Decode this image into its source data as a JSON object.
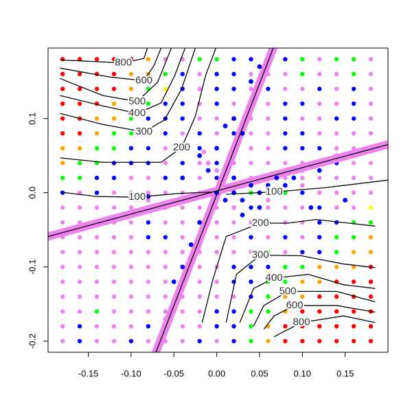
{
  "chart_data": {
    "type": "scatter",
    "xlim": [
      -0.197,
      0.2
    ],
    "ylim": [
      -0.215,
      0.195
    ],
    "xticks": [
      -0.15,
      {
        "value": -0.1,
        "label": "-0.10"
      },
      -0.05,
      {
        "value": 0,
        "label": "0.00"
      },
      0.05,
      {
        "value": 0.1,
        "label": "0.10"
      },
      0.15
    ],
    "yticks": [
      -0.2,
      -0.1,
      {
        "value": 0,
        "label": "0.0"
      },
      0.1
    ],
    "class_colors": [
      "#ee82ee",
      "#0000ff",
      "#00ff00",
      "#ffa500",
      "#ff0000",
      "#ffff00"
    ],
    "grid_x": [
      -0.18,
      -0.16,
      -0.14,
      -0.12,
      -0.1,
      -0.08,
      -0.06,
      -0.04,
      -0.02,
      0,
      0.02,
      0.04,
      0.06,
      0.08,
      0.1,
      0.12,
      0.14,
      0.16,
      0.18
    ],
    "grid_y": [
      0.18,
      0.16,
      0.14,
      0.12,
      0.1,
      0.08,
      0.06,
      0.04,
      0.02,
      0,
      -0.02,
      -0.04,
      -0.06,
      -0.08,
      -0.1,
      -0.12,
      -0.14,
      -0.16,
      -0.18,
      -0.2
    ],
    "grid_class": [
      [
        4,
        4,
        4,
        4,
        4,
        3,
        0,
        0,
        2,
        2,
        1,
        1,
        0,
        1,
        2,
        0,
        2,
        2,
        0
      ],
      [
        4,
        4,
        4,
        4,
        3,
        3,
        2,
        1,
        0,
        1,
        1,
        0,
        0,
        0,
        2,
        0,
        0,
        2,
        0
      ],
      [
        4,
        4,
        4,
        4,
        3,
        2,
        5,
        1,
        0,
        1,
        1,
        0,
        1,
        0,
        0,
        1,
        0,
        1,
        0
      ],
      [
        4,
        4,
        4,
        3,
        2,
        2,
        1,
        1,
        0,
        1,
        0,
        1,
        0,
        1,
        1,
        0,
        0,
        1,
        0
      ],
      [
        4,
        4,
        3,
        3,
        2,
        1,
        1,
        1,
        0,
        0,
        0,
        0,
        0,
        1,
        0,
        0,
        1,
        1,
        0
      ],
      [
        4,
        4,
        3,
        2,
        2,
        0,
        1,
        0,
        1,
        0,
        1,
        0,
        0,
        1,
        1,
        0,
        0,
        0,
        0
      ],
      [
        3,
        3,
        2,
        2,
        1,
        1,
        0,
        0,
        1,
        1,
        0,
        0,
        0,
        1,
        1,
        1,
        0,
        0,
        0
      ],
      [
        3,
        2,
        2,
        1,
        1,
        1,
        0,
        1,
        0,
        1,
        0,
        0,
        0,
        0,
        0,
        0,
        1,
        0,
        0
      ],
      [
        2,
        2,
        1,
        1,
        0,
        0,
        1,
        0,
        0,
        1,
        0,
        0,
        0,
        0,
        0,
        0,
        0,
        0,
        0
      ],
      [
        1,
        0,
        1,
        0,
        0,
        0,
        0,
        0,
        0,
        1,
        0,
        2,
        0,
        2,
        1,
        0,
        0,
        0,
        0
      ],
      [
        0,
        0,
        0,
        0,
        0,
        0,
        0,
        0,
        0,
        0,
        0,
        1,
        0,
        0,
        0,
        1,
        0,
        0,
        5
      ],
      [
        0,
        0,
        0,
        0,
        0,
        1,
        0,
        0,
        0,
        0,
        0,
        0,
        1,
        0,
        0,
        1,
        1,
        2,
        2
      ],
      [
        0,
        0,
        0,
        0,
        0,
        1,
        1,
        0,
        0,
        0,
        0,
        1,
        0,
        1,
        0,
        1,
        2,
        2,
        3
      ],
      [
        0,
        0,
        0,
        0,
        0,
        0,
        0,
        0,
        0,
        0,
        0,
        0,
        2,
        0,
        1,
        1,
        2,
        3,
        3
      ],
      [
        0,
        0,
        0,
        0,
        0,
        0,
        0,
        0,
        0,
        0,
        1,
        1,
        1,
        2,
        2,
        3,
        3,
        3,
        4
      ],
      [
        0,
        0,
        0,
        0,
        0,
        0,
        0,
        1,
        0,
        0,
        1,
        1,
        2,
        2,
        3,
        3,
        4,
        4,
        4
      ],
      [
        0,
        0,
        0,
        0,
        0,
        0,
        0,
        0,
        0,
        0,
        0,
        1,
        2,
        3,
        3,
        4,
        4,
        4,
        4
      ],
      [
        0,
        0,
        2,
        0,
        0,
        0,
        0,
        0,
        0,
        1,
        1,
        2,
        2,
        3,
        4,
        4,
        4,
        4,
        4
      ],
      [
        0,
        1,
        0,
        0,
        0,
        1,
        0,
        0,
        0,
        1,
        1,
        2,
        3,
        4,
        4,
        4,
        4,
        4,
        4
      ],
      [
        0,
        1,
        0,
        0,
        1,
        0,
        0,
        0,
        1,
        0,
        1,
        2,
        3,
        4,
        4,
        4,
        4,
        4,
        4
      ]
    ],
    "points": [
      {
        "color": "#ee82ee",
        "x": [
          -0.06,
          -0.05,
          -0.04,
          -0.03,
          -0.02,
          0.01,
          0.02,
          0.03,
          0.04,
          0.05,
          0.06,
          -0.01,
          0.0,
          -0.015,
          -0.17,
          -0.14,
          -0.11,
          -0.08,
          -0.06,
          0.08,
          0.1,
          0.12,
          0.14,
          0.16,
          0.18,
          0.06,
          0.02,
          0.1
        ],
        "y": [
          -0.17,
          -0.15,
          -0.12,
          -0.09,
          -0.06,
          0.02,
          0.05,
          0.08,
          0.11,
          0.14,
          0.17,
          0.04,
          0.03,
          0.055,
          -0.05,
          -0.04,
          -0.03,
          -0.01,
          -0.02,
          0.03,
          0.03,
          0.04,
          0.05,
          0.05,
          0.06,
          -0.01,
          -0.02,
          0.01
        ]
      },
      {
        "color": "#0000ff",
        "x": [
          0.0,
          0.01,
          0.02,
          0.03,
          0.04,
          0.05,
          0.06,
          0.07,
          0.08,
          0.09,
          0.03,
          0.05,
          0.02,
          -0.01,
          -0.02,
          0.0,
          0.01,
          0.02,
          0.03,
          0.04,
          0.05,
          -0.02,
          -0.03,
          -0.04,
          -0.05,
          -0.04,
          -0.08,
          0.12,
          0.11,
          0.15
        ],
        "y": [
          0.0,
          -0.01,
          0.0,
          -0.01,
          0.01,
          0.0,
          0.01,
          0.02,
          0.01,
          0.02,
          -0.03,
          -0.02,
          0.02,
          0.03,
          0.05,
          0.06,
          0.09,
          0.1,
          0.08,
          0.15,
          0.17,
          -0.04,
          -0.07,
          -0.1,
          -0.12,
          0.02,
          -0.005,
          0.03,
          -0.02,
          -0.01
        ]
      }
    ],
    "lines": [
      {
        "color": "#000000",
        "x": [
          -0.071,
          0.066
        ],
        "y": [
          -0.215,
          0.195
        ]
      },
      {
        "color": "#000000",
        "x": [
          -0.197,
          0.2
        ],
        "y": [
          -0.059,
          0.065
        ]
      }
    ],
    "contour_color": "#000000",
    "contours": [
      {
        "level": 100,
        "x": [
          -0.183,
          -0.141,
          -0.093,
          -0.045,
          -0.005
        ],
        "y": [
          0.001,
          -0.005,
          -0.006,
          -0.001,
          0.001
        ]
      },
      {
        "level": 200,
        "x": [
          -0.183,
          -0.133,
          -0.065,
          -0.041,
          -0.025,
          -0.013,
          -0.001
        ],
        "y": [
          0.047,
          0.041,
          0.041,
          0.061,
          0.103,
          0.158,
          0.195
        ]
      },
      {
        "level": 300,
        "x": [
          -0.183,
          -0.133,
          -0.085,
          -0.061,
          -0.041,
          -0.025
        ],
        "y": [
          0.107,
          0.092,
          0.082,
          0.098,
          0.14,
          0.195
        ]
      },
      {
        "level": 400,
        "x": [
          -0.183,
          -0.133,
          -0.093,
          -0.065,
          -0.049,
          -0.037
        ],
        "y": [
          0.131,
          0.117,
          0.107,
          0.121,
          0.158,
          0.195
        ]
      },
      {
        "level": 500,
        "x": [
          -0.183,
          -0.133,
          -0.093,
          -0.069,
          -0.053
        ],
        "y": [
          0.154,
          0.131,
          0.123,
          0.149,
          0.195
        ]
      },
      {
        "level": 600,
        "x": [
          -0.183,
          -0.125,
          -0.085,
          -0.073,
          -0.065
        ],
        "y": [
          0.168,
          0.156,
          0.151,
          0.172,
          0.195
        ]
      },
      {
        "level": 800,
        "x": [
          -0.183,
          -0.109,
          -0.085,
          -0.081
        ],
        "y": [
          0.179,
          0.175,
          0.181,
          0.195
        ]
      },
      {
        "level": 100,
        "x": [
          0.011,
          0.067,
          0.128,
          0.2
        ],
        "y": [
          -0.002,
          0.001,
          0.007,
          0.017
        ]
      },
      {
        "level": 200,
        "x": [
          -0.017,
          -0.005,
          0.011,
          0.051,
          0.083,
          0.116,
          0.185
        ],
        "y": [
          -0.175,
          -0.119,
          -0.059,
          -0.041,
          -0.041,
          -0.036,
          -0.045
        ]
      },
      {
        "level": 300,
        "x": [
          0.011,
          0.023,
          0.051,
          0.099,
          0.148,
          0.185
        ],
        "y": [
          -0.175,
          -0.11,
          -0.084,
          -0.085,
          -0.096,
          -0.101
        ]
      },
      {
        "level": 400,
        "x": [
          0.027,
          0.043,
          0.067,
          0.107,
          0.148,
          0.185
        ],
        "y": [
          -0.175,
          -0.129,
          -0.115,
          -0.11,
          -0.124,
          -0.129
        ]
      },
      {
        "level": 500,
        "x": [
          0.043,
          0.055,
          0.083,
          0.14,
          0.185
        ],
        "y": [
          -0.18,
          -0.152,
          -0.133,
          -0.133,
          -0.147
        ]
      },
      {
        "level": 600,
        "x": [
          0.055,
          0.067,
          0.091,
          0.14,
          0.185
        ],
        "y": [
          -0.184,
          -0.166,
          -0.152,
          -0.152,
          -0.161
        ]
      },
      {
        "level": 800,
        "x": [
          0.067,
          0.099,
          0.148,
          0.185
        ],
        "y": [
          -0.194,
          -0.175,
          -0.166,
          -0.175
        ]
      }
    ]
  }
}
